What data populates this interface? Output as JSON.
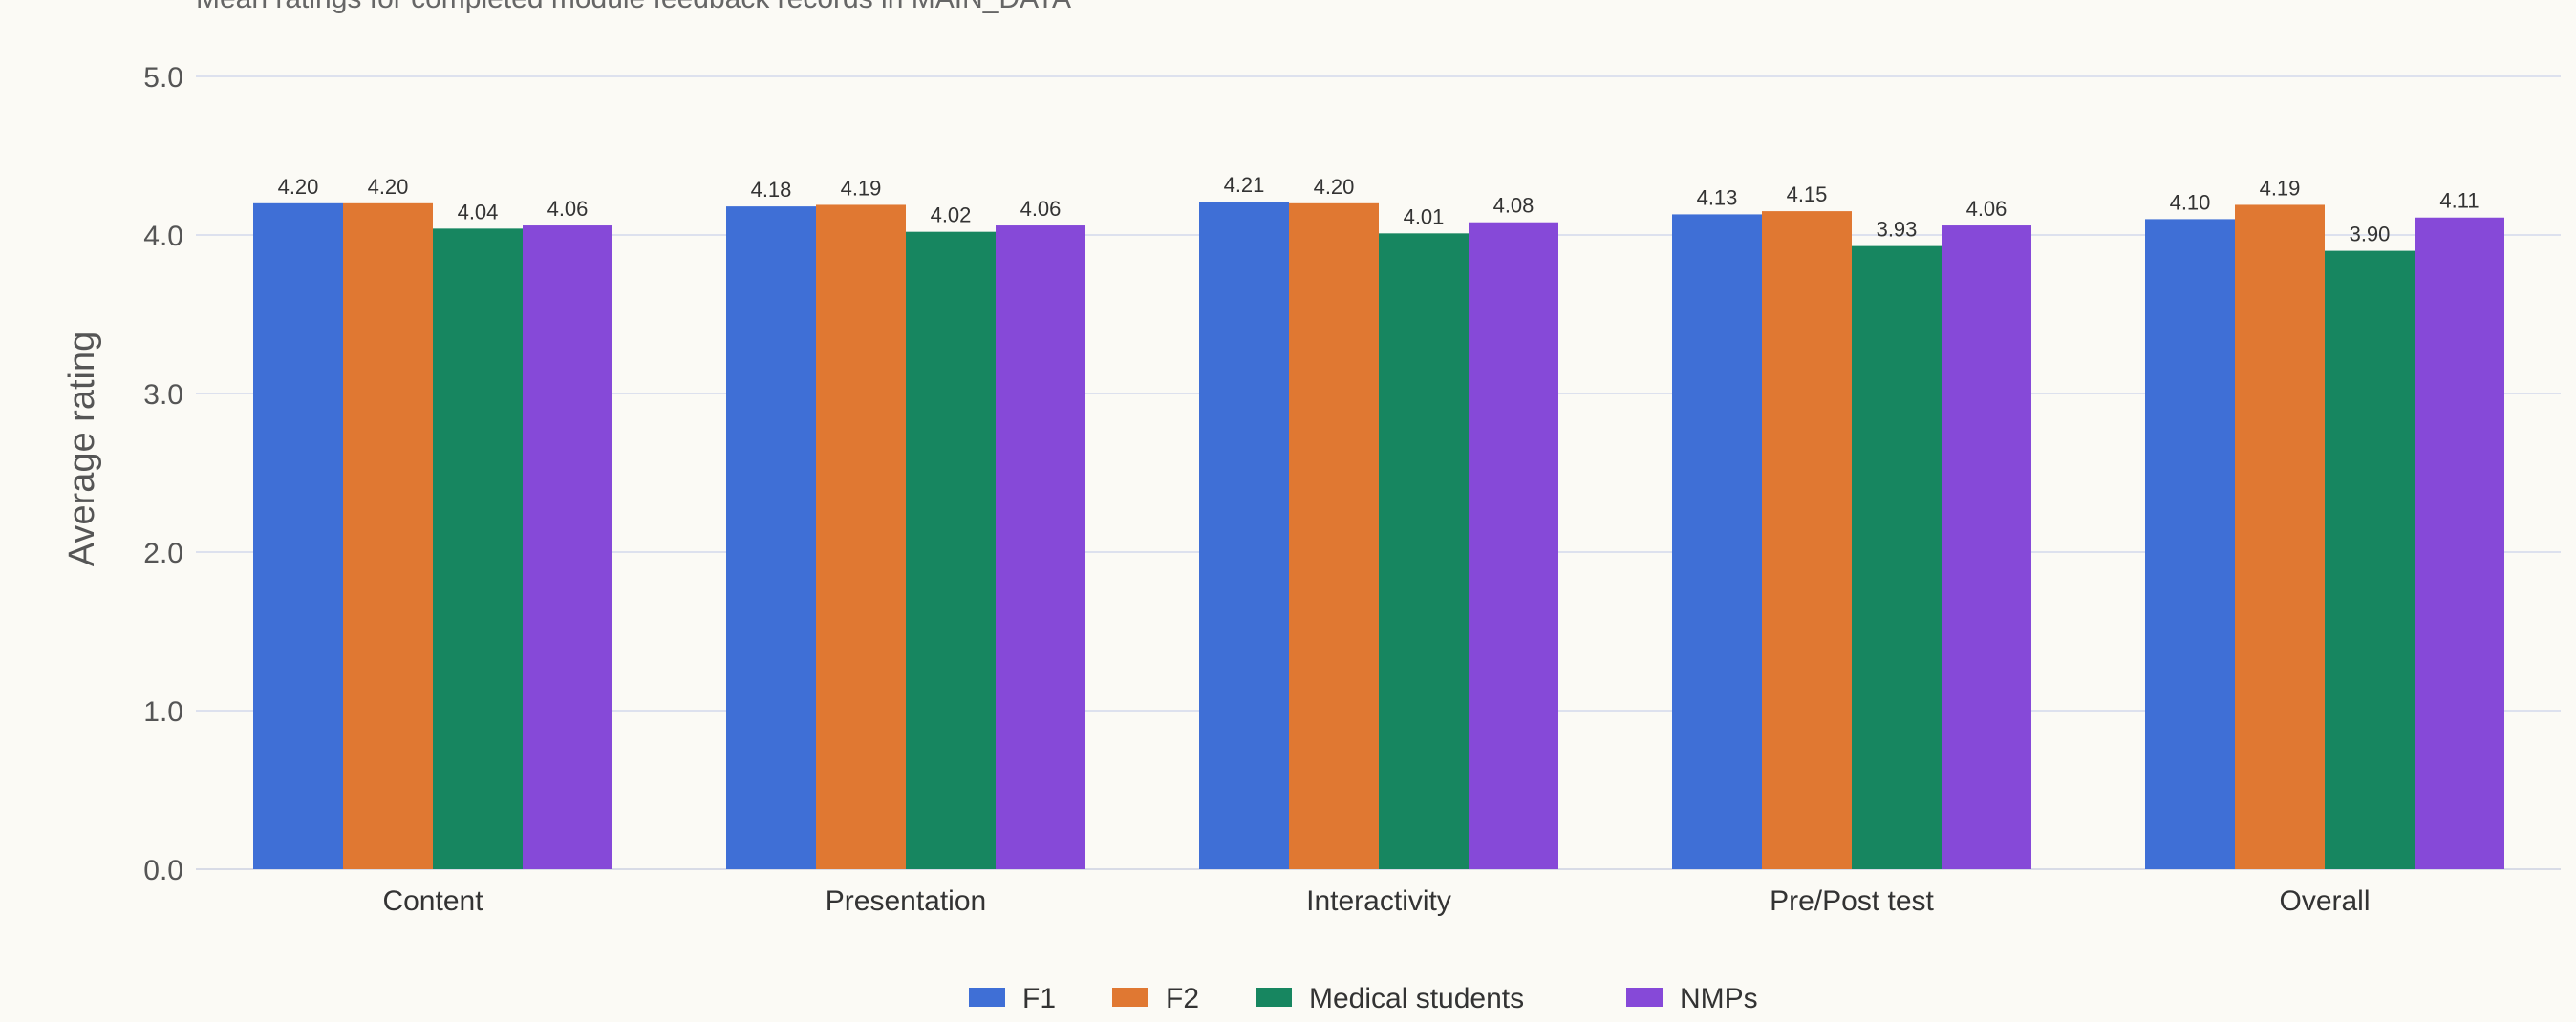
{
  "chart_data": {
    "type": "bar",
    "subtitle": "Mean ratings for completed module feedback records in MAIN_DATA",
    "ylabel": "Average rating",
    "xlabel": "",
    "ylim": [
      0,
      5
    ],
    "yticks": [
      "0.0",
      "1.0",
      "2.0",
      "3.0",
      "4.0",
      "5.0"
    ],
    "categories": [
      "Content",
      "Presentation",
      "Interactivity",
      "Pre/Post test",
      "Overall"
    ],
    "series": [
      {
        "name": "F1",
        "color": "#3f6fd6",
        "values": [
          4.2,
          4.18,
          4.21,
          4.13,
          4.1
        ],
        "labels": [
          "4.20",
          "4.18",
          "4.21",
          "4.13",
          "4.10"
        ]
      },
      {
        "name": "F2",
        "color": "#e07832",
        "values": [
          4.2,
          4.19,
          4.2,
          4.15,
          4.19
        ],
        "labels": [
          "4.20",
          "4.19",
          "4.20",
          "4.15",
          "4.19"
        ]
      },
      {
        "name": "Medical students",
        "color": "#178660",
        "values": [
          4.04,
          4.02,
          4.01,
          3.93,
          3.9
        ],
        "labels": [
          "4.04",
          "4.02",
          "4.01",
          "3.93",
          "3.90"
        ]
      },
      {
        "name": "NMPs",
        "color": "#8649d8",
        "values": [
          4.06,
          4.06,
          4.08,
          4.06,
          4.11
        ],
        "labels": [
          "4.06",
          "4.06",
          "4.08",
          "4.06",
          "4.11"
        ]
      }
    ],
    "grid": true,
    "legend_position": "bottom-center"
  }
}
